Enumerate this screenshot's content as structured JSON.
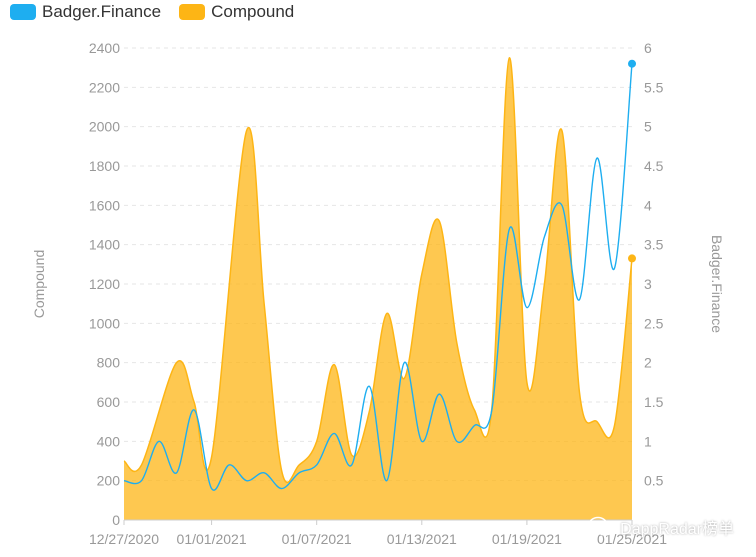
{
  "chart_data": {
    "type": "area",
    "xlabel": "",
    "y_left_label": "Compound",
    "y_right_label": "Badger.Finance",
    "x_tick_labels": [
      "12/27/2020",
      "01/01/2021",
      "01/07/2021",
      "01/13/2021",
      "01/19/2021",
      "01/25/2021"
    ],
    "y_left_ticks": [
      "0",
      "200",
      "400",
      "600",
      "800",
      "1000",
      "1200",
      "1400",
      "1600",
      "1800",
      "2000",
      "2200",
      "2400"
    ],
    "y_right_ticks": [
      "0.5",
      "1",
      "1.5",
      "2",
      "2.5",
      "3",
      "3.5",
      "4",
      "4.5",
      "5",
      "5.5",
      "6"
    ],
    "y_left_lim": [
      0,
      2400
    ],
    "y_right_lim": [
      0,
      6
    ],
    "x_range_days": [
      0,
      29
    ],
    "grid": "horizontal dashed",
    "legend_position": "top-left",
    "series": [
      {
        "name": "Compound",
        "axis": "left",
        "style": "area",
        "color": "#FDB515",
        "x": [
          0,
          1,
          3,
          4,
          5,
          7,
          8,
          9,
          10,
          11,
          12,
          13,
          14,
          15,
          16,
          17,
          18,
          19,
          20,
          21,
          22,
          23,
          24,
          25,
          26,
          27,
          28,
          29
        ],
        "y": [
          300,
          280,
          800,
          600,
          320,
          1980,
          1100,
          250,
          280,
          400,
          790,
          330,
          550,
          1050,
          720,
          1250,
          1520,
          900,
          560,
          570,
          2350,
          700,
          1200,
          1980,
          650,
          500,
          480,
          1330
        ]
      },
      {
        "name": "Badger.Finance",
        "axis": "right",
        "style": "line",
        "color": "#1EAEF0",
        "x": [
          0,
          1,
          2,
          3,
          4,
          5,
          6,
          7,
          8,
          9,
          10,
          11,
          12,
          13,
          14,
          15,
          16,
          17,
          18,
          19,
          20,
          21,
          22,
          23,
          24,
          25,
          26,
          27,
          28,
          29
        ],
        "y": [
          0.5,
          0.5,
          1.0,
          0.6,
          1.4,
          0.4,
          0.7,
          0.5,
          0.6,
          0.4,
          0.6,
          0.7,
          1.1,
          0.7,
          1.7,
          0.5,
          2.0,
          1.0,
          1.6,
          1.0,
          1.2,
          1.4,
          3.7,
          2.7,
          3.6,
          4.0,
          2.8,
          4.6,
          3.2,
          5.8
        ]
      }
    ]
  },
  "legend": [
    {
      "label": "Badger.Finance",
      "color": "#1EAEF0"
    },
    {
      "label": "Compound",
      "color": "#FDB515"
    }
  ],
  "watermark": {
    "text": "DappRadar榜单",
    "icon": "wechat-icon"
  }
}
